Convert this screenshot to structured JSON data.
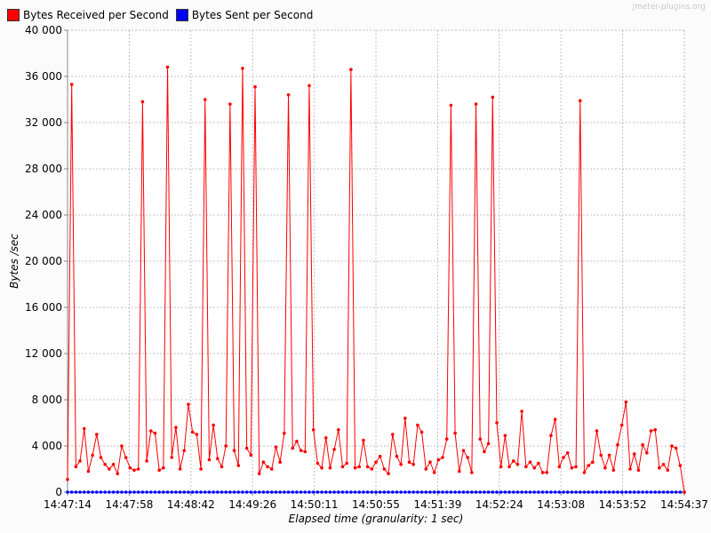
{
  "watermark": "jmeter-plugins.org",
  "colors": {
    "received": "#ff0000",
    "sent": "#0000ff",
    "grid": "#c0c0c0",
    "plot_bg": "#ffffff"
  },
  "chart_data": {
    "type": "line",
    "xlabel": "Elapsed time (granularity: 1 sec)",
    "ylabel": "Bytes /sec",
    "ylim": [
      0,
      40000
    ],
    "xlim": [
      "14:47:14",
      "14:54:37"
    ],
    "grid": true,
    "legend_placement": "top-left",
    "yticks": [
      "0",
      "4 000",
      "8 000",
      "12 000",
      "16 000",
      "20 000",
      "24 000",
      "28 000",
      "32 000",
      "36 000",
      "40 000"
    ],
    "xticks": [
      "14:47:14",
      "14:47:58",
      "14:48:42",
      "14:49:26",
      "14:50:11",
      "14:50:55",
      "14:51:39",
      "14:52:24",
      "14:53:08",
      "14:53:52",
      "14:54:37"
    ],
    "series": [
      {
        "name": "Bytes Received per Second",
        "color": "#ff0000",
        "values": [
          1100,
          35300,
          2200,
          2700,
          5500,
          1800,
          3200,
          5000,
          3000,
          2400,
          2000,
          2400,
          1600,
          4000,
          3000,
          2100,
          1900,
          2000,
          33800,
          2700,
          5300,
          5100,
          1900,
          2100,
          36800,
          3000,
          5600,
          2000,
          3600,
          7600,
          5200,
          5000,
          2000,
          34000,
          2800,
          5800,
          2900,
          2200,
          4000,
          33600,
          3600,
          2300,
          36700,
          3800,
          3200,
          35100,
          1600,
          2600,
          2200,
          2000,
          3900,
          2600,
          5100,
          34400,
          3800,
          4400,
          3600,
          3500,
          35200,
          5400,
          2500,
          2100,
          4700,
          2100,
          3700,
          5400,
          2200,
          2500,
          36600,
          2100,
          2200,
          4500,
          2200,
          2000,
          2600,
          3100,
          2000,
          1600,
          5000,
          3100,
          2400,
          6400,
          2600,
          2400,
          5800,
          5200,
          2000,
          2600,
          1700,
          2800,
          3000,
          4600,
          33500,
          5100,
          1800,
          3600,
          3000,
          1700,
          33600,
          4600,
          3500,
          4200,
          34200,
          6000,
          2200,
          4900,
          2200,
          2700,
          2400,
          7000,
          2200,
          2600,
          2100,
          2500,
          1700,
          1700,
          4900,
          6300,
          2200,
          3000,
          3400,
          2100,
          2200,
          33900,
          1700,
          2300,
          2600,
          5300,
          3200,
          2100,
          3200,
          1900,
          4100,
          5800,
          7800,
          2000,
          3300,
          1900,
          4100,
          3400,
          5300,
          5400,
          2100,
          2400,
          1900,
          4000,
          3800,
          2300,
          0
        ]
      },
      {
        "name": "Bytes Sent per Second",
        "color": "#0000ff",
        "values": "constant-zero"
      }
    ]
  }
}
